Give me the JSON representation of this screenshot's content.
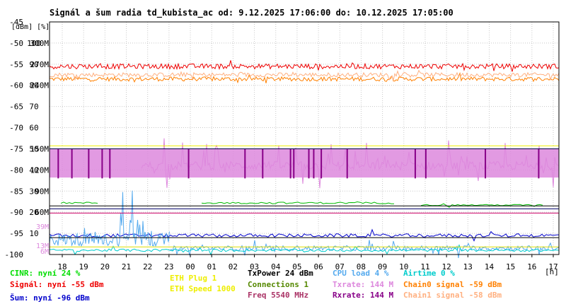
{
  "chart_data": {
    "type": "line",
    "title": "Signál a šum radia td_kubista_ac od: 9.12.2025 17:06:00 do: 10.12.2025 17:05:00",
    "units_label": "[dBm] [%]",
    "x_unit": "[h]",
    "x_ticks": [
      "18",
      "19",
      "20",
      "21",
      "22",
      "23",
      "00",
      "01",
      "02",
      "03",
      "04",
      "05",
      "06",
      "07",
      "08",
      "09",
      "10",
      "11",
      "12",
      "13",
      "14",
      "15",
      "16",
      "17"
    ],
    "y_labels_dbm": [
      "-45",
      "-50",
      "-55",
      "-60",
      "-65",
      "-70",
      "-75",
      "-80",
      "-85",
      "-90",
      "-95",
      "-100"
    ],
    "y_labels_pct": [
      "100",
      "90",
      "80",
      "70",
      "60",
      "50",
      "40",
      "30",
      "20",
      "10"
    ],
    "y_labels_rate": [
      "300M",
      "270M",
      "240M",
      "150M",
      "120M",
      "90M",
      "60M"
    ],
    "y_labels_extra": [
      {
        "text": "39M",
        "color": "#dd88dd"
      },
      {
        "text": "13M",
        "color": "#dd88dd"
      },
      {
        "text": "6M",
        "color": "#dd88dd"
      }
    ],
    "ylim_dbm": [
      -100,
      -45
    ],
    "grid": true,
    "series": [
      {
        "name": "Signál",
        "color": "#ee0000",
        "base": -55.5,
        "spread": 1.2,
        "note": "nyní -55 dBm"
      },
      {
        "name": "Chain0 signal",
        "color": "#ff8000",
        "base": -58.5,
        "spread": 1.0
      },
      {
        "name": "Chain1 signal",
        "color": "#ffb080",
        "base": -57.5,
        "spread": 1.0
      },
      {
        "name": "Txrate",
        "color": "#dd88dd",
        "base": -80.5,
        "spread": 3.0
      },
      {
        "name": "Rxrate",
        "color": "#880088",
        "base": -80.5
      },
      {
        "name": "Šum",
        "color": "#0000cc",
        "base": -95.5,
        "spread": 0.8
      },
      {
        "name": "Connections",
        "color": "#00bb00",
        "base": -87.8
      },
      {
        "name": "CPU load",
        "color": "#55aaee",
        "base": -98.0,
        "spread": 1.5
      },
      {
        "name": "Airtime",
        "color": "#00cccc",
        "base": -99.0
      }
    ],
    "ref_lines": [
      {
        "value": -74.3,
        "color": "#eeee00"
      },
      {
        "value": -75.0,
        "color": "#000044"
      },
      {
        "value": -88.5,
        "color": "#000000"
      },
      {
        "value": -89.2,
        "color": "#000066"
      },
      {
        "value": -90.2,
        "color": "#cc0066"
      },
      {
        "value": -96.0,
        "color": "#000000"
      },
      {
        "value": -98.2,
        "color": "#dddd00"
      }
    ]
  },
  "legend": {
    "cinr": {
      "text": "CINR: nyní 24 %",
      "color": "#00dd00"
    },
    "signal": {
      "text": "Signál: nyní -55 dBm",
      "color": "#ee0000"
    },
    "noise": {
      "text": "Šum: nyní -96 dBm",
      "color": "#0000cc"
    },
    "eth_plug": {
      "text": "ETH Plug 1",
      "color": "#eeee00"
    },
    "eth_speed": {
      "text": "ETH Speed 1000",
      "color": "#eeee00"
    },
    "txpower": {
      "text": "TxPower 24 dBm",
      "color": "#000000"
    },
    "connections": {
      "text": "Connections 1",
      "color": "#558800"
    },
    "freq": {
      "text": "Freq 5540 MHz",
      "color": "#aa3366"
    },
    "cpu": {
      "text": "CPU load 4 %",
      "color": "#55aaee"
    },
    "txrate": {
      "text": "Txrate: 144 M",
      "color": "#dd88dd"
    },
    "rxrate": {
      "text": "Rxrate: 144 M",
      "color": "#880088"
    },
    "airtime": {
      "text": "Airtime 0 %",
      "color": "#00cccc"
    },
    "chain0": {
      "text": "Chain0 signal -59 dBm",
      "color": "#ff8000"
    },
    "chain1": {
      "text": "Chain1 signal -58 dBm",
      "color": "#ffb080"
    }
  }
}
